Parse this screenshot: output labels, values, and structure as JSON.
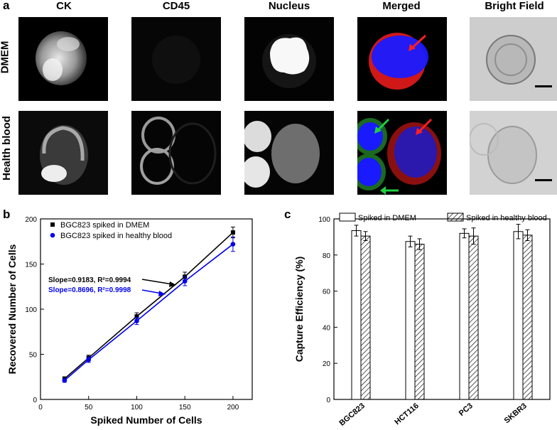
{
  "panel_a": {
    "letter": "a",
    "columns": [
      "CK",
      "CD45",
      "Nucleus",
      "Merged",
      "Bright Field"
    ],
    "rows": [
      "DMEM",
      "Health blood"
    ]
  },
  "panel_b": {
    "letter": "b",
    "slope_black": "Slope=0.9183, R²=0.9994",
    "slope_blue": "Slope=0.8696, R²=0.9998"
  },
  "panel_c": {
    "letter": "c"
  },
  "chart_data": [
    {
      "type": "line",
      "xlabel": "Spiked Number of Cells",
      "ylabel": "Recovered Number of Cells",
      "xlim": [
        0,
        220
      ],
      "ylim": [
        0,
        200
      ],
      "xticks": [
        0,
        50,
        100,
        150,
        200
      ],
      "yticks": [
        0,
        50,
        100,
        150,
        200
      ],
      "legend_position": "top-left",
      "series": [
        {
          "name": "BGC823 spiked in DMEM",
          "color": "#000000",
          "x": [
            25,
            50,
            100,
            150,
            200
          ],
          "y": [
            23,
            46,
            92,
            136,
            185
          ],
          "err": [
            2,
            3,
            4,
            5,
            6
          ]
        },
        {
          "name": "BGC823 spiked in healthy blood",
          "color": "#0000ee",
          "x": [
            25,
            50,
            100,
            150,
            200
          ],
          "y": [
            21,
            44,
            87,
            131,
            172
          ],
          "err": [
            2,
            3,
            4,
            5,
            8
          ]
        }
      ]
    },
    {
      "type": "bar",
      "ylabel": "Capture Efficiency (%)",
      "ylim": [
        0,
        100
      ],
      "yticks": [
        0,
        20,
        40,
        60,
        80,
        100
      ],
      "categories": [
        "BGC823",
        "HCT116",
        "PC3",
        "SKBR3"
      ],
      "legend_position": "top",
      "series": [
        {
          "name": "Spiked in DMEM",
          "fill": "white",
          "values": [
            93.5,
            87.5,
            92,
            93
          ],
          "err": [
            3,
            3,
            2.5,
            4
          ]
        },
        {
          "name": "Spiked in healthy blood",
          "fill": "hatched",
          "values": [
            90.5,
            86,
            90.5,
            91
          ],
          "err": [
            2.5,
            3,
            4.5,
            3
          ]
        }
      ]
    }
  ]
}
